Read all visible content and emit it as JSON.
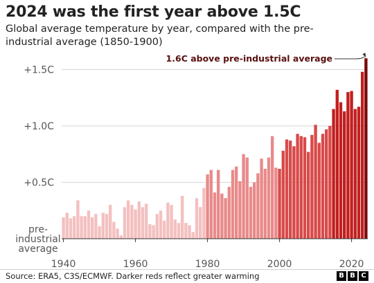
{
  "title": "2024 was the first year above 1.5C",
  "subtitle": "Global average temperature by year, compared with the pre-industrial average (1850-1900)",
  "source": "Source: ERA5, C3S/ECMWF. Darker reds reflect greater warming",
  "logo": [
    "B",
    "B",
    "C"
  ],
  "colors": {
    "palette": [
      "#f4c0c0",
      "#e98a8a",
      "#d94a4a",
      "#c21f1f",
      "#7a0a0a"
    ],
    "gridline": "#d6d6d6",
    "text": "#222222"
  },
  "chart_data": {
    "type": "bar",
    "title": "2024 was the first year above 1.5C",
    "subtitle": "Global average temperature by year, compared with the pre-industrial average (1850-1900)",
    "xlabel": "",
    "ylabel": "",
    "ylim": [
      0,
      1.6
    ],
    "xlim": [
      1940,
      2024
    ],
    "grid": true,
    "y_ticks": [
      {
        "value": 0,
        "label": "pre-\nindustrial\naverage"
      },
      {
        "value": 0.5,
        "label": "+0.5C"
      },
      {
        "value": 1.0,
        "label": "+1.0C"
      },
      {
        "value": 1.5,
        "label": "+1.5C"
      }
    ],
    "x_ticks": [
      "1940",
      "1960",
      "1980",
      "2000",
      "2020"
    ],
    "annotation": {
      "text": "1.6C above pre-industrial average",
      "year": 2024,
      "value": 1.6
    },
    "x": [
      1940,
      1941,
      1942,
      1943,
      1944,
      1945,
      1946,
      1947,
      1948,
      1949,
      1950,
      1951,
      1952,
      1953,
      1954,
      1955,
      1956,
      1957,
      1958,
      1959,
      1960,
      1961,
      1962,
      1963,
      1964,
      1965,
      1966,
      1967,
      1968,
      1969,
      1970,
      1971,
      1972,
      1973,
      1974,
      1975,
      1976,
      1977,
      1978,
      1979,
      1980,
      1981,
      1982,
      1983,
      1984,
      1985,
      1986,
      1987,
      1988,
      1989,
      1990,
      1991,
      1992,
      1993,
      1994,
      1995,
      1996,
      1997,
      1998,
      1999,
      2000,
      2001,
      2002,
      2003,
      2004,
      2005,
      2006,
      2007,
      2008,
      2009,
      2010,
      2011,
      2012,
      2013,
      2014,
      2015,
      2016,
      2017,
      2018,
      2019,
      2020,
      2021,
      2022,
      2023,
      2024
    ],
    "values": [
      0.19,
      0.23,
      0.18,
      0.2,
      0.34,
      0.2,
      0.2,
      0.25,
      0.19,
      0.22,
      0.11,
      0.23,
      0.22,
      0.3,
      0.15,
      0.09,
      0.03,
      0.28,
      0.34,
      0.3,
      0.26,
      0.33,
      0.28,
      0.31,
      0.13,
      0.12,
      0.22,
      0.25,
      0.16,
      0.32,
      0.3,
      0.17,
      0.14,
      0.38,
      0.14,
      0.12,
      0.06,
      0.36,
      0.28,
      0.45,
      0.57,
      0.61,
      0.41,
      0.61,
      0.4,
      0.36,
      0.46,
      0.61,
      0.64,
      0.51,
      0.75,
      0.72,
      0.46,
      0.5,
      0.58,
      0.71,
      0.62,
      0.72,
      0.91,
      0.63,
      0.62,
      0.78,
      0.88,
      0.87,
      0.82,
      0.93,
      0.91,
      0.9,
      0.77,
      0.92,
      1.01,
      0.85,
      0.93,
      0.97,
      1.0,
      1.15,
      1.32,
      1.21,
      1.13,
      1.3,
      1.31,
      1.15,
      1.17,
      1.48,
      1.6
    ]
  }
}
